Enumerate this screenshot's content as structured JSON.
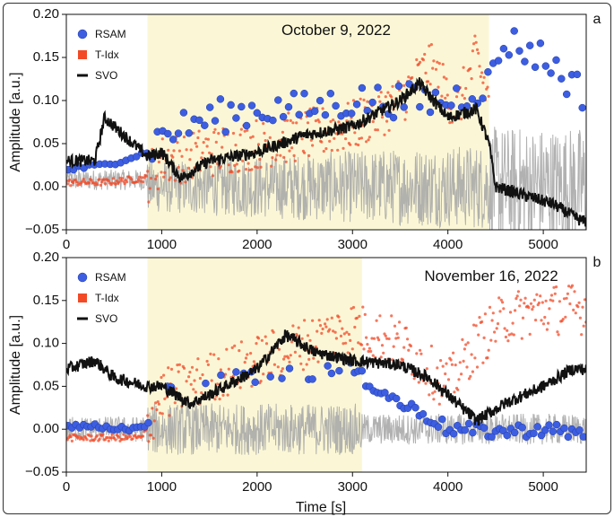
{
  "chart_data": [
    {
      "type": "line",
      "panel_label": "a",
      "title": "October 9, 2022",
      "xlabel": "",
      "ylabel": "Amplitude [a.u.]",
      "xlim": [
        0,
        5450
      ],
      "ylim": [
        -0.05,
        0.2
      ],
      "xticks": [
        0,
        1000,
        2000,
        3000,
        4000,
        5000
      ],
      "yticks": [
        -0.05,
        0.0,
        0.05,
        0.1,
        0.15,
        0.2
      ],
      "ytick_labels": [
        "−0.05",
        "0.00",
        "0.05",
        "0.10",
        "0.15",
        "0.20"
      ],
      "highlight_span": [
        850,
        4430
      ],
      "legend": [
        "RSAM",
        "T-Idx",
        "SVO"
      ],
      "colors": {
        "rsam": "#3d5ee0",
        "tidx": "#f24a27",
        "svo": "#111111",
        "raw": "#a8a8a8",
        "highlight": "#fbf7d6"
      },
      "series": [
        {
          "name": "RSAM",
          "x": [
            0,
            400,
            850,
            1000,
            1500,
            2000,
            2500,
            3000,
            3500,
            4000,
            4430,
            4600,
            5000,
            5400
          ],
          "values": [
            0.02,
            0.025,
            0.04,
            0.06,
            0.08,
            0.09,
            0.09,
            0.1,
            0.1,
            0.1,
            0.12,
            0.17,
            0.15,
            0.11
          ]
        },
        {
          "name": "T-Idx",
          "x": [
            0,
            400,
            850,
            1000,
            1500,
            2000,
            2500,
            3000,
            3500,
            3800,
            4100,
            4300,
            4430
          ],
          "values": [
            0.005,
            0.005,
            0.01,
            0.03,
            0.04,
            0.05,
            0.06,
            0.07,
            0.1,
            0.14,
            0.09,
            0.15,
            0.1
          ]
        },
        {
          "name": "SVO",
          "x": [
            0,
            300,
            400,
            850,
            1000,
            1200,
            1500,
            2000,
            2500,
            3000,
            3500,
            3700,
            4000,
            4300,
            4430,
            4500,
            4800,
            5100,
            5400
          ],
          "values": [
            0.03,
            0.03,
            0.08,
            0.035,
            0.04,
            0.01,
            0.03,
            0.04,
            0.06,
            0.07,
            0.1,
            0.12,
            0.08,
            0.09,
            0.05,
            0.0,
            -0.01,
            -0.02,
            -0.04
          ]
        }
      ]
    },
    {
      "type": "line",
      "panel_label": "b",
      "title": "November 16, 2022",
      "xlabel": "Time [s]",
      "ylabel": "Amplitude [a.u.]",
      "xlim": [
        0,
        5450
      ],
      "ylim": [
        -0.05,
        0.2
      ],
      "xticks": [
        0,
        1000,
        2000,
        3000,
        4000,
        5000
      ],
      "yticks": [
        -0.05,
        0.0,
        0.05,
        0.1,
        0.15,
        0.2
      ],
      "ytick_labels": [
        "−0.05",
        "0.00",
        "0.05",
        "0.10",
        "0.15",
        "0.20"
      ],
      "highlight_span": [
        850,
        3100
      ],
      "legend": [
        "RSAM",
        "T-Idx",
        "SVO"
      ],
      "colors": {
        "rsam": "#3d5ee0",
        "tidx": "#f24a27",
        "svo": "#111111",
        "raw": "#a8a8a8",
        "highlight": "#fbf7d6"
      },
      "series": [
        {
          "name": "RSAM",
          "x": [
            0,
            800,
            1000,
            1500,
            2000,
            2500,
            3000,
            3100,
            3500,
            3800,
            4000,
            4500,
            5000,
            5400
          ],
          "values": [
            0.005,
            0.0,
            0.04,
            0.06,
            0.06,
            0.065,
            0.07,
            0.06,
            0.03,
            0.015,
            0.0,
            -0.003,
            0.0,
            -0.005
          ]
        },
        {
          "name": "T-Idx",
          "x": [
            0,
            800,
            1000,
            1500,
            2000,
            2500,
            3000,
            3500,
            4000,
            4300,
            4600,
            5000,
            5400
          ],
          "values": [
            -0.01,
            -0.01,
            0.04,
            0.06,
            0.08,
            0.1,
            0.12,
            0.1,
            0.05,
            0.1,
            0.13,
            0.14,
            0.14
          ]
        },
        {
          "name": "SVO",
          "x": [
            0,
            300,
            500,
            850,
            1000,
            1300,
            1500,
            2000,
            2300,
            2600,
            3000,
            3500,
            3800,
            4000,
            4300,
            4600,
            5000,
            5300,
            5400
          ],
          "values": [
            0.07,
            0.08,
            0.06,
            0.05,
            0.05,
            0.03,
            0.04,
            0.07,
            0.11,
            0.09,
            0.08,
            0.075,
            0.06,
            0.04,
            0.01,
            0.03,
            0.05,
            0.07,
            0.07
          ]
        }
      ]
    }
  ]
}
